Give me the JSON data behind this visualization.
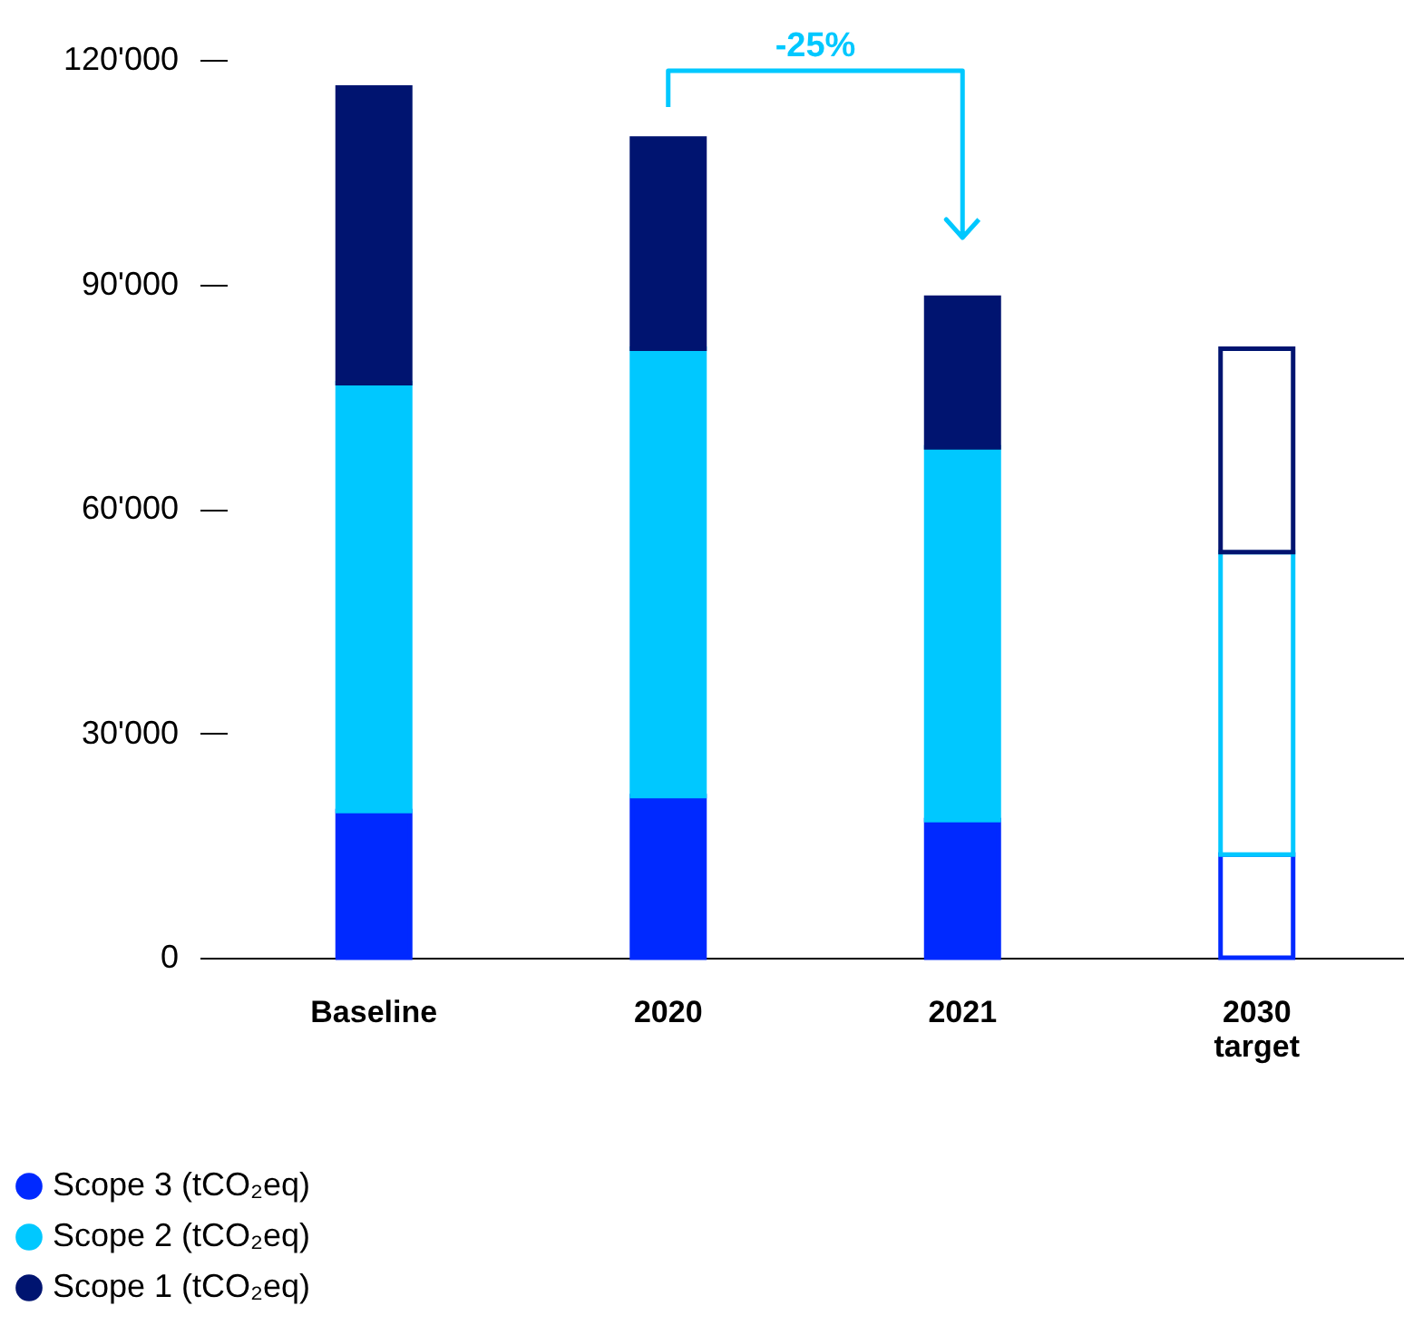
{
  "chart_data": {
    "type": "bar",
    "stacked": true,
    "categories": [
      "Baseline",
      "2020",
      "2021",
      "2030 target"
    ],
    "series": [
      {
        "name": "Scope 3 (tCO₂eq)",
        "color": "#0029ff",
        "colors": [
          "#0029ff",
          "#0029ff",
          "#0029ff",
          "#ffffff"
        ],
        "values": [
          19600,
          21600,
          18400,
          13800
        ]
      },
      {
        "name": "Scope 2 (tCO₂eq)",
        "color": "#00c8ff",
        "colors": [
          "#00c8ff",
          "#00c8ff",
          "#00c8ff",
          "#ffffff"
        ],
        "values": [
          57200,
          59800,
          49800,
          40400
        ]
      },
      {
        "name": "Scope 1 (tCO₂eq)",
        "color": "#001470",
        "colors": [
          "#001470",
          "#001470",
          "#001470",
          "#ffffff"
        ],
        "values": [
          39500,
          28100,
          20000,
          27200
        ]
      }
    ],
    "ylim": [
      0,
      120000
    ],
    "yticks": [
      {
        "value": 0,
        "label": "0"
      },
      {
        "value": 30000,
        "label": "30'000"
      },
      {
        "value": 60000,
        "label": "60'000"
      },
      {
        "value": 90000,
        "label": "90'000"
      },
      {
        "value": 120000,
        "label": "120'000"
      }
    ],
    "annotations": [
      "-25%"
    ],
    "grid": false,
    "legend": "bottom left"
  }
}
